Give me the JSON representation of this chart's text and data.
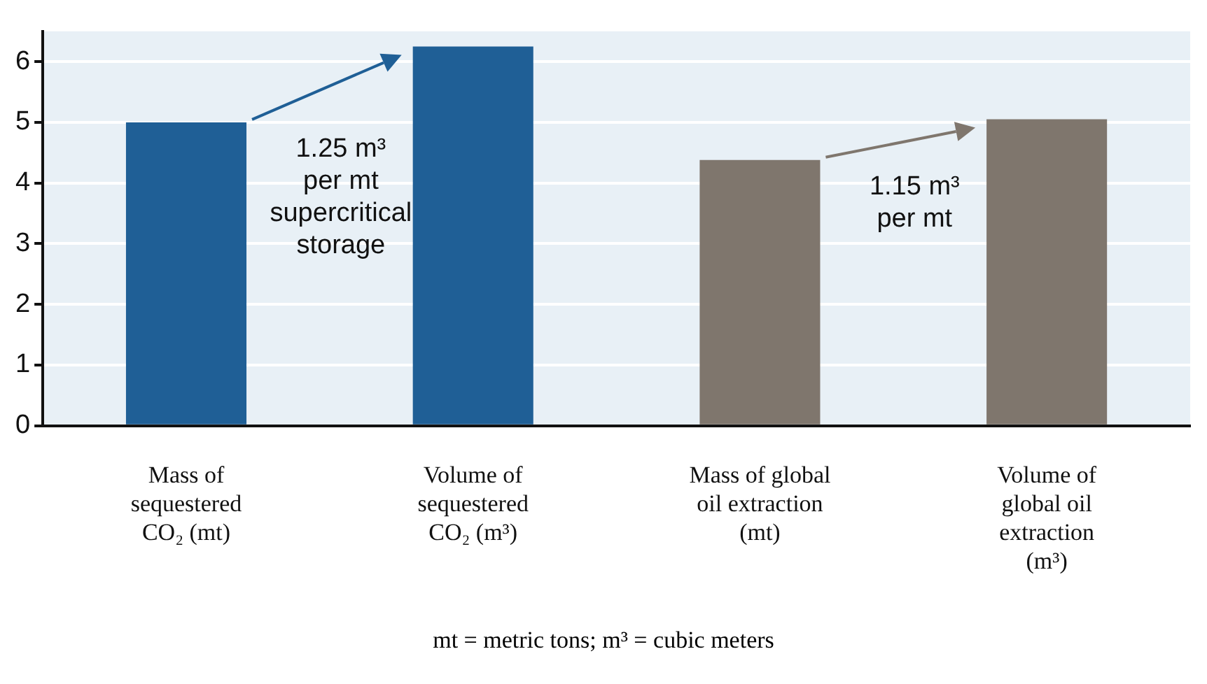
{
  "chart_data": {
    "type": "bar",
    "categories": [
      "Mass of sequestered CO₂ (mt)",
      "Volume of sequestered CO₂ (m³)",
      "Mass of global oil extraction (mt)",
      "Volume of global oil extraction (m³)"
    ],
    "values": [
      5.0,
      6.25,
      4.38,
      5.05
    ],
    "colors": [
      "#1f5f96",
      "#1f5f96",
      "#7f766d",
      "#7f766d"
    ],
    "ylim": [
      0,
      6.5
    ],
    "yticks": [
      0,
      1,
      2,
      3,
      4,
      5,
      6
    ],
    "grid": "y",
    "legend": false,
    "annotations": [
      "1.25 m³ per mt supercritical storage",
      "1.15 m³ per mt",
      "mt = metric tons; m³ = cubic meters"
    ]
  }
}
